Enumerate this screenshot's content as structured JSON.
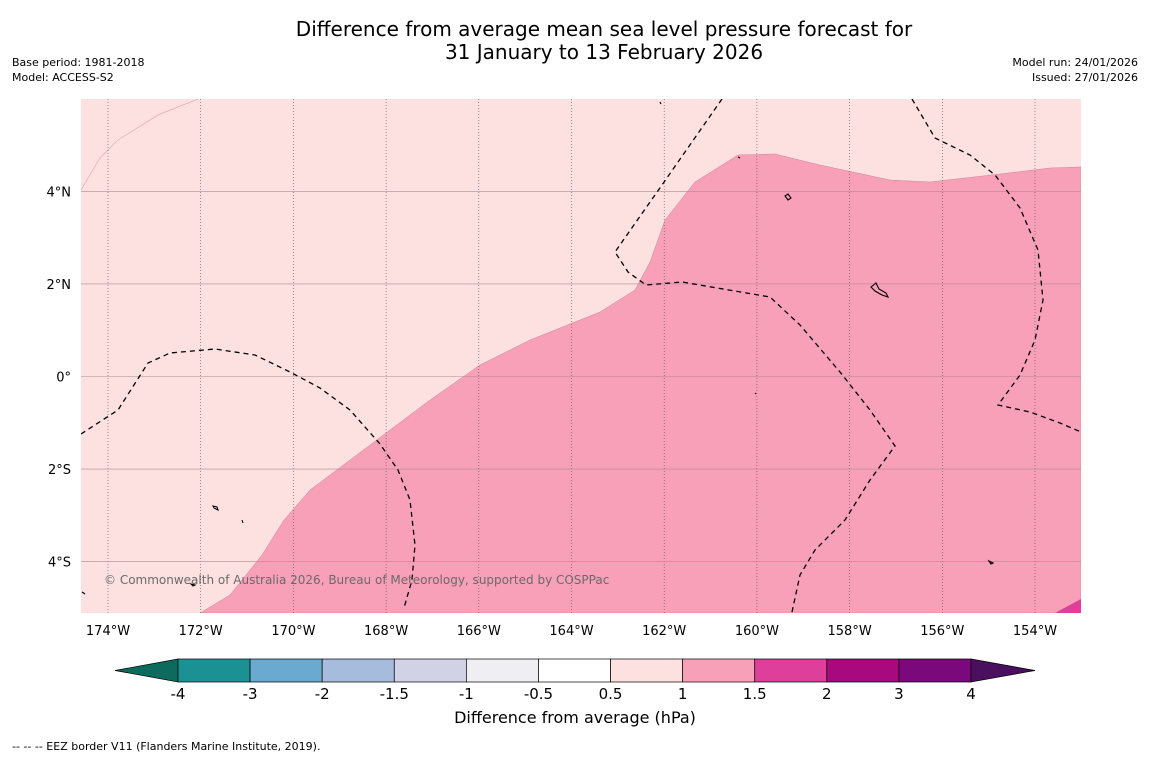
{
  "title": {
    "line1": "Difference from average mean sea level pressure forecast for",
    "line2": "31 January to 13 February 2026"
  },
  "meta_left": {
    "base_period": "Base period: 1981-2018",
    "model": "Model: ACCESS-S2"
  },
  "meta_right": {
    "model_run": "Model run: 24/01/2026",
    "issued": "Issued: 27/01/2026"
  },
  "map": {
    "lon_range": [
      -174.6,
      -153.0
    ],
    "lat_range": [
      -5.2,
      5.9
    ],
    "lon_ticks": [
      {
        "value": -174,
        "label": "174°W"
      },
      {
        "value": -172,
        "label": "172°W"
      },
      {
        "value": -170,
        "label": "170°W"
      },
      {
        "value": -168,
        "label": "168°W"
      },
      {
        "value": -166,
        "label": "166°W"
      },
      {
        "value": -164,
        "label": "164°W"
      },
      {
        "value": -162,
        "label": "162°W"
      },
      {
        "value": -160,
        "label": "160°W"
      },
      {
        "value": -158,
        "label": "158°W"
      },
      {
        "value": -156,
        "label": "156°W"
      },
      {
        "value": -154,
        "label": "154°W"
      }
    ],
    "lat_ticks": [
      {
        "value": 4,
        "label": "4°N"
      },
      {
        "value": 2,
        "label": "2°N"
      },
      {
        "value": 0,
        "label": "0°"
      },
      {
        "value": -2,
        "label": "2°S"
      },
      {
        "value": -4,
        "label": "4°S"
      }
    ],
    "copyright": "© Commonwealth of Australia 2026, Bureau of Meteorology, supported by COSPPac",
    "background_color": "#fde0e0",
    "anomaly_color": "#f8a0b7",
    "high_color": "#dd3f9a"
  },
  "colorbar": {
    "label": "Difference from average (hPa)",
    "under_color": "#0d6b5e",
    "over_color": "#4a0f5f",
    "bins": [
      {
        "color": "#1c9193"
      },
      {
        "color": "#6aa9d0"
      },
      {
        "color": "#a7bbdc"
      },
      {
        "color": "#d2d2e6"
      },
      {
        "color": "#efeef2"
      },
      {
        "color": "#ffffff"
      },
      {
        "color": "#fde0e0"
      },
      {
        "color": "#f8a0b7"
      },
      {
        "color": "#dd3f9a"
      },
      {
        "color": "#a8097f"
      },
      {
        "color": "#7a097b"
      }
    ],
    "ticks": [
      "-4",
      "-3",
      "-2",
      "-1.5",
      "-1",
      "-0.5",
      "0.5",
      "1",
      "1.5",
      "2",
      "3",
      "4"
    ]
  },
  "footnote": "--  --  -- EEZ border V11 (Flanders Marine Institute, 2019)."
}
